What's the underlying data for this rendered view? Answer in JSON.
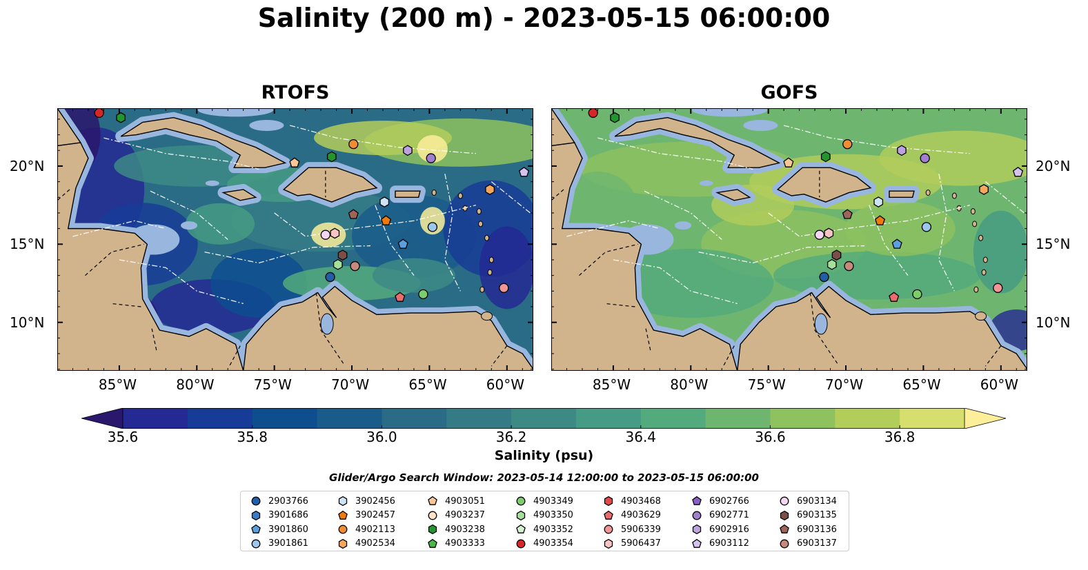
{
  "title": "Salinity (200 m) - 2023-05-15 06:00:00",
  "panels": [
    {
      "title": "RTOFS"
    },
    {
      "title": "GOFS"
    }
  ],
  "axes": {
    "lon_ticks": [
      "85°W",
      "80°W",
      "75°W",
      "70°W",
      "65°W",
      "60°W"
    ],
    "lon_values": [
      -85,
      -80,
      -75,
      -70,
      -65,
      -60
    ],
    "lat_ticks": [
      "20°N",
      "15°N",
      "10°N"
    ],
    "lat_values": [
      20,
      15,
      10
    ],
    "lon_range": [
      -89,
      -58.3
    ],
    "lat_range": [
      6.9,
      23.7
    ]
  },
  "colorbar": {
    "label": "Salinity (psu)",
    "ticks": [
      "35.6",
      "35.8",
      "36.0",
      "36.2",
      "36.4",
      "36.6",
      "36.8"
    ],
    "tick_values": [
      35.6,
      35.8,
      36.0,
      36.2,
      36.4,
      36.6,
      36.8
    ],
    "range": [
      35.6,
      36.9
    ],
    "extend": "both",
    "colormap": "haline",
    "colors": [
      "#2a186c",
      "#252993",
      "#173c97",
      "#0e4e8f",
      "#1a5c89",
      "#2a6b86",
      "#357b86",
      "#3d8a85",
      "#459b83",
      "#53aa7d",
      "#6eb670",
      "#8dc25f",
      "#b3cd5b",
      "#d6df6d",
      "#fdef9a"
    ]
  },
  "search_window": "Glider/Argo Search Window: 2023-05-14 12:00:00 to 2023-05-15 06:00:00",
  "colors": {
    "land": "#d2b48c",
    "shelf": "#99b6df",
    "deep_low_salinity": "#2a186c",
    "gofs_field": "#7fbf6a",
    "rtofs_field": "#1e5a8c"
  },
  "legend": [
    {
      "id": "2903766",
      "marker": "circle",
      "color": "#1f5fa8"
    },
    {
      "id": "3901686",
      "marker": "hexagon",
      "color": "#3b7cc4"
    },
    {
      "id": "3901860",
      "marker": "pentagon",
      "color": "#5aa0de"
    },
    {
      "id": "3901861",
      "marker": "circle",
      "color": "#9cc7ec"
    },
    {
      "id": "3902456",
      "marker": "hexagon",
      "color": "#cde4f6"
    },
    {
      "id": "3902457",
      "marker": "pentagon",
      "color": "#f07a10"
    },
    {
      "id": "4902113",
      "marker": "circle",
      "color": "#f28c30"
    },
    {
      "id": "4902534",
      "marker": "hexagon",
      "color": "#f7a75c"
    },
    {
      "id": "4903051",
      "marker": "pentagon",
      "color": "#f9c796"
    },
    {
      "id": "4903237",
      "marker": "circle",
      "color": "#fde2c8"
    },
    {
      "id": "4903238",
      "marker": "hexagon",
      "color": "#22952e"
    },
    {
      "id": "4903333",
      "marker": "pentagon",
      "color": "#4cb84a"
    },
    {
      "id": "4903349",
      "marker": "circle",
      "color": "#7cce6d"
    },
    {
      "id": "4903350",
      "marker": "hexagon",
      "color": "#a6e09a"
    },
    {
      "id": "4903352",
      "marker": "pentagon",
      "color": "#d3f2cd"
    },
    {
      "id": "4903354",
      "marker": "circle",
      "color": "#d62728"
    },
    {
      "id": "4903468",
      "marker": "hexagon",
      "color": "#e04a4a"
    },
    {
      "id": "4903629",
      "marker": "pentagon",
      "color": "#ec6b6b"
    },
    {
      "id": "5906339",
      "marker": "circle",
      "color": "#f49494"
    },
    {
      "id": "5906437",
      "marker": "hexagon",
      "color": "#f9c4c4"
    },
    {
      "id": "6902766",
      "marker": "pentagon",
      "color": "#8a5fc3"
    },
    {
      "id": "6902771",
      "marker": "circle",
      "color": "#a27ed1"
    },
    {
      "id": "6902916",
      "marker": "hexagon",
      "color": "#bda2df"
    },
    {
      "id": "6903112",
      "marker": "pentagon",
      "color": "#d5c3ee"
    },
    {
      "id": "6903134",
      "marker": "circle",
      "color": "#f3d6f3"
    },
    {
      "id": "6903135",
      "marker": "hexagon",
      "color": "#7b4f46"
    },
    {
      "id": "6903136",
      "marker": "pentagon",
      "color": "#9e6459"
    },
    {
      "id": "6903137",
      "marker": "circle",
      "color": "#c68a7c"
    }
  ],
  "floats_plotted": [
    {
      "id": "4903354",
      "lon": -86.3,
      "lat": 23.4
    },
    {
      "id": "4903238",
      "lon": -84.9,
      "lat": 23.1
    },
    {
      "id": "4902113",
      "lon": -69.9,
      "lat": 21.4
    },
    {
      "id": "6902916",
      "lon": -66.4,
      "lat": 21.0
    },
    {
      "id": "4903238",
      "lon": -71.3,
      "lat": 20.6
    },
    {
      "id": "6902771",
      "lon": -64.9,
      "lat": 20.5
    },
    {
      "id": "4903051",
      "lon": -73.7,
      "lat": 20.2
    },
    {
      "id": "6903112",
      "lon": -58.9,
      "lat": 19.6
    },
    {
      "id": "4902534",
      "lon": -61.1,
      "lat": 18.5
    },
    {
      "id": "3902456",
      "lon": -67.9,
      "lat": 17.7
    },
    {
      "id": "6903136",
      "lon": -69.9,
      "lat": 16.9
    },
    {
      "id": "3902457",
      "lon": -67.8,
      "lat": 16.5
    },
    {
      "id": "3901861",
      "lon": -64.8,
      "lat": 16.1
    },
    {
      "id": "6903134",
      "lon": -71.7,
      "lat": 15.6
    },
    {
      "id": "5906437",
      "lon": -71.1,
      "lat": 15.7
    },
    {
      "id": "3901860",
      "lon": -66.7,
      "lat": 15.0
    },
    {
      "id": "6903135",
      "lon": -70.6,
      "lat": 14.3
    },
    {
      "id": "4903350",
      "lon": -70.9,
      "lat": 13.7
    },
    {
      "id": "6903137",
      "lon": -69.8,
      "lat": 13.6
    },
    {
      "id": "2903766",
      "lon": -71.4,
      "lat": 12.9
    },
    {
      "id": "4903349",
      "lon": -65.4,
      "lat": 11.8
    },
    {
      "id": "4903629",
      "lon": -66.9,
      "lat": 11.6
    },
    {
      "id": "5906339",
      "lon": -60.2,
      "lat": 12.2
    }
  ]
}
